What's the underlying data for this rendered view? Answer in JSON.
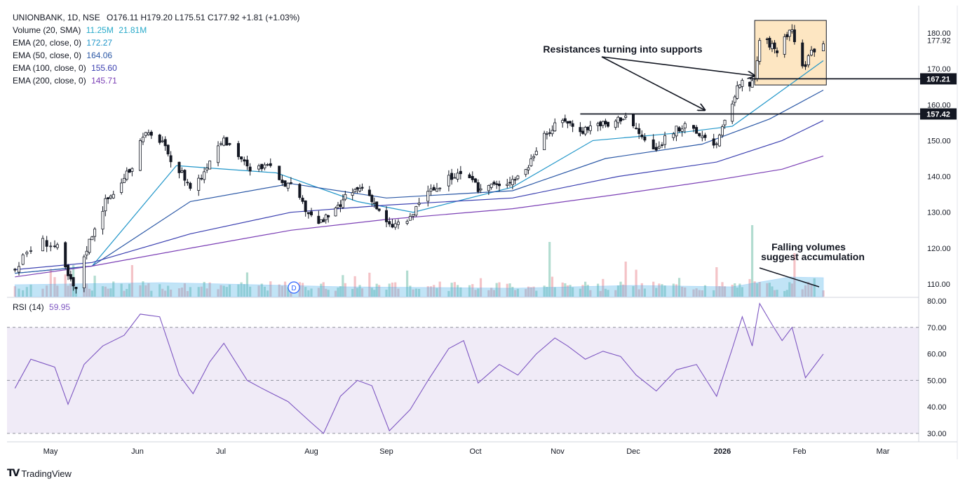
{
  "header": {
    "symbol_line": "UNIONBANK, 1D, NSE",
    "ohlc": "O176.11 H179.20 L175.51 C177.92 +1.81 (+1.03%)"
  },
  "legend": [
    {
      "label": "Volume (20, SMA)",
      "values": [
        "11.25M",
        "21.81M"
      ],
      "color": "#26a9c9"
    },
    {
      "label": "EMA (20, close, 0)",
      "values": [
        "172.27"
      ],
      "color": "#2196c9"
    },
    {
      "label": "EMA (50, close, 0)",
      "values": [
        "164.06"
      ],
      "color": "#2b58a6"
    },
    {
      "label": "EMA (100, close, 0)",
      "values": [
        "155.60"
      ],
      "color": "#3a3fb0"
    },
    {
      "label": "EMA (200, close, 0)",
      "values": [
        "145.71"
      ],
      "color": "#7b3fb5"
    }
  ],
  "rsi": {
    "label": "RSI (14)",
    "value": "59.95",
    "color": "#7e57c2"
  },
  "price_axis": {
    "ticks": [
      "180.00",
      "170.00",
      "160.00",
      "150.00",
      "140.00",
      "130.00",
      "120.00",
      "110.00"
    ],
    "last_price": "177.92",
    "level_labels": [
      "167.21",
      "157.42"
    ]
  },
  "rsi_axis": {
    "ticks": [
      "80.00",
      "70.00",
      "60.00",
      "50.00",
      "40.00",
      "30.00"
    ]
  },
  "time_axis": {
    "labels": [
      "May",
      "Jun",
      "Jul",
      "Aug",
      "Sep",
      "Oct",
      "Nov",
      "Dec",
      "2026",
      "Jan",
      "Feb",
      "Mar"
    ]
  },
  "annotations": {
    "resistance_text": "Resistances turning into supports",
    "volume_text_1": "Falling volumes",
    "volume_text_2": "suggest accumulation",
    "interval_badge": "D"
  },
  "brand": {
    "name": "TradingView",
    "icon": "tradingview-logo-icon"
  },
  "chart_data": {
    "type": "candlestick",
    "symbol": "UNIONBANK",
    "interval": "1D",
    "exchange": "NSE",
    "y_range": [
      108,
      184
    ],
    "rsi_range": [
      28,
      81
    ],
    "support_levels": [
      167.21,
      157.42
    ],
    "rsi_bands": [
      70,
      50,
      30
    ],
    "consolidation_box": {
      "start": "2026-01-14",
      "end": "2026-02-10",
      "low": 165.5,
      "high": 183.5
    },
    "close_path": [
      {
        "date": "2025-04-21",
        "close": 114
      },
      {
        "date": "2025-04-24",
        "close": 119
      },
      {
        "date": "2025-04-28",
        "close": 122
      },
      {
        "date": "2025-05-02",
        "close": 120
      },
      {
        "date": "2025-05-06",
        "close": 112
      },
      {
        "date": "2025-05-09",
        "close": 108
      },
      {
        "date": "2025-05-12",
        "close": 118
      },
      {
        "date": "2025-05-16",
        "close": 126
      },
      {
        "date": "2025-05-20",
        "close": 133
      },
      {
        "date": "2025-05-26",
        "close": 138
      },
      {
        "date": "2025-05-30",
        "close": 143
      },
      {
        "date": "2025-06-03",
        "close": 152
      },
      {
        "date": "2025-06-06",
        "close": 151
      },
      {
        "date": "2025-06-10",
        "close": 150
      },
      {
        "date": "2025-06-13",
        "close": 143
      },
      {
        "date": "2025-06-17",
        "close": 141
      },
      {
        "date": "2025-06-20",
        "close": 137
      },
      {
        "date": "2025-06-24",
        "close": 140
      },
      {
        "date": "2025-06-27",
        "close": 145
      },
      {
        "date": "2025-07-01",
        "close": 150
      },
      {
        "date": "2025-07-04",
        "close": 149
      },
      {
        "date": "2025-07-08",
        "close": 145
      },
      {
        "date": "2025-07-11",
        "close": 141
      },
      {
        "date": "2025-07-15",
        "close": 143
      },
      {
        "date": "2025-07-18",
        "close": 142
      },
      {
        "date": "2025-07-22",
        "close": 139
      },
      {
        "date": "2025-07-25",
        "close": 137
      },
      {
        "date": "2025-07-29",
        "close": 132
      },
      {
        "date": "2025-08-01",
        "close": 129
      },
      {
        "date": "2025-08-05",
        "close": 127
      },
      {
        "date": "2025-08-08",
        "close": 129
      },
      {
        "date": "2025-08-12",
        "close": 131
      },
      {
        "date": "2025-08-15",
        "close": 134
      },
      {
        "date": "2025-08-19",
        "close": 136
      },
      {
        "date": "2025-08-22",
        "close": 137
      },
      {
        "date": "2025-08-26",
        "close": 134
      },
      {
        "date": "2025-08-29",
        "close": 130
      },
      {
        "date": "2025-09-02",
        "close": 126
      },
      {
        "date": "2025-09-05",
        "close": 127
      },
      {
        "date": "2025-09-09",
        "close": 128
      },
      {
        "date": "2025-09-12",
        "close": 133
      },
      {
        "date": "2025-09-16",
        "close": 136
      },
      {
        "date": "2025-09-19",
        "close": 137
      },
      {
        "date": "2025-09-23",
        "close": 140
      },
      {
        "date": "2025-09-26",
        "close": 141
      },
      {
        "date": "2025-09-30",
        "close": 138
      },
      {
        "date": "2025-10-03",
        "close": 136
      },
      {
        "date": "2025-10-07",
        "close": 138
      },
      {
        "date": "2025-10-10",
        "close": 137
      },
      {
        "date": "2025-10-14",
        "close": 139
      },
      {
        "date": "2025-10-17",
        "close": 140
      },
      {
        "date": "2025-10-21",
        "close": 143
      },
      {
        "date": "2025-10-24",
        "close": 148
      },
      {
        "date": "2025-10-28",
        "close": 152
      },
      {
        "date": "2025-10-31",
        "close": 154
      },
      {
        "date": "2025-11-04",
        "close": 156
      },
      {
        "date": "2025-11-07",
        "close": 154
      },
      {
        "date": "2025-11-11",
        "close": 153
      },
      {
        "date": "2025-11-14",
        "close": 154
      },
      {
        "date": "2025-11-18",
        "close": 155
      },
      {
        "date": "2025-11-21",
        "close": 154
      },
      {
        "date": "2025-11-25",
        "close": 156
      },
      {
        "date": "2025-11-28",
        "close": 157
      },
      {
        "date": "2025-12-02",
        "close": 153
      },
      {
        "date": "2025-12-05",
        "close": 150
      },
      {
        "date": "2025-12-09",
        "close": 147
      },
      {
        "date": "2025-12-12",
        "close": 151
      },
      {
        "date": "2025-12-16",
        "close": 153
      },
      {
        "date": "2025-12-19",
        "close": 154
      },
      {
        "date": "2025-12-23",
        "close": 152
      },
      {
        "date": "2025-12-26",
        "close": 151
      },
      {
        "date": "2025-12-30",
        "close": 149
      },
      {
        "date": "2026-01-02",
        "close": 155
      },
      {
        "date": "2026-01-05",
        "close": 161
      },
      {
        "date": "2026-01-08",
        "close": 166
      },
      {
        "date": "2026-01-12",
        "close": 165
      },
      {
        "date": "2026-01-14",
        "close": 167
      },
      {
        "date": "2026-01-16",
        "close": 178
      },
      {
        "date": "2026-01-20",
        "close": 177
      },
      {
        "date": "2026-01-23",
        "close": 175
      },
      {
        "date": "2026-01-27",
        "close": 180
      },
      {
        "date": "2026-01-29",
        "close": 181
      },
      {
        "date": "2026-02-02",
        "close": 170
      },
      {
        "date": "2026-02-05",
        "close": 175
      },
      {
        "date": "2026-02-09",
        "close": 177.92
      }
    ],
    "ema_path": [
      {
        "name": "EMA (20, close, 0)",
        "points": [
          [
            "2025-04-21",
            113
          ],
          [
            "2025-05-15",
            115
          ],
          [
            "2025-06-15",
            143
          ],
          [
            "2025-07-20",
            141
          ],
          [
            "2025-08-20",
            133
          ],
          [
            "2025-09-10",
            130
          ],
          [
            "2025-10-15",
            137
          ],
          [
            "2025-11-15",
            150
          ],
          [
            "2025-12-15",
            152
          ],
          [
            "2026-01-05",
            154
          ],
          [
            "2026-02-09",
            172.27
          ]
        ]
      },
      {
        "name": "EMA (50, close, 0)",
        "points": [
          [
            "2025-04-21",
            113
          ],
          [
            "2025-05-15",
            115
          ],
          [
            "2025-06-20",
            133
          ],
          [
            "2025-07-25",
            138
          ],
          [
            "2025-09-01",
            134
          ],
          [
            "2025-10-15",
            136
          ],
          [
            "2025-11-20",
            145
          ],
          [
            "2025-12-25",
            149
          ],
          [
            "2026-01-20",
            156
          ],
          [
            "2026-02-09",
            164.06
          ]
        ]
      },
      {
        "name": "EMA (100, close, 0)",
        "points": [
          [
            "2025-04-21",
            114
          ],
          [
            "2025-05-15",
            116
          ],
          [
            "2025-06-20",
            124
          ],
          [
            "2025-07-25",
            130
          ],
          [
            "2025-09-01",
            132
          ],
          [
            "2025-10-15",
            134
          ],
          [
            "2025-11-25",
            140
          ],
          [
            "2025-12-30",
            144
          ],
          [
            "2026-01-25",
            150
          ],
          [
            "2026-02-09",
            155.6
          ]
        ]
      },
      {
        "name": "EMA (200, close, 0)",
        "points": [
          [
            "2025-04-21",
            112
          ],
          [
            "2025-05-15",
            115
          ],
          [
            "2025-06-20",
            120
          ],
          [
            "2025-07-25",
            125
          ],
          [
            "2025-09-01",
            128
          ],
          [
            "2025-10-15",
            131
          ],
          [
            "2025-11-25",
            135
          ],
          [
            "2025-12-30",
            139
          ],
          [
            "2026-01-25",
            142
          ],
          [
            "2026-02-09",
            145.71
          ]
        ]
      }
    ],
    "rsi_path": [
      {
        "date": "2025-04-21",
        "rsi": 47
      },
      {
        "date": "2025-04-25",
        "rsi": 58
      },
      {
        "date": "2025-05-01",
        "rsi": 55
      },
      {
        "date": "2025-05-06",
        "rsi": 41
      },
      {
        "date": "2025-05-12",
        "rsi": 56
      },
      {
        "date": "2025-05-19",
        "rsi": 63
      },
      {
        "date": "2025-05-27",
        "rsi": 67
      },
      {
        "date": "2025-06-02",
        "rsi": 75
      },
      {
        "date": "2025-06-09",
        "rsi": 74
      },
      {
        "date": "2025-06-16",
        "rsi": 52
      },
      {
        "date": "2025-06-21",
        "rsi": 45
      },
      {
        "date": "2025-06-27",
        "rsi": 57
      },
      {
        "date": "2025-07-02",
        "rsi": 64
      },
      {
        "date": "2025-07-10",
        "rsi": 50
      },
      {
        "date": "2025-07-15",
        "rsi": 47
      },
      {
        "date": "2025-07-24",
        "rsi": 42
      },
      {
        "date": "2025-08-01",
        "rsi": 34
      },
      {
        "date": "2025-08-06",
        "rsi": 30
      },
      {
        "date": "2025-08-13",
        "rsi": 44
      },
      {
        "date": "2025-08-20",
        "rsi": 50
      },
      {
        "date": "2025-08-26",
        "rsi": 48
      },
      {
        "date": "2025-09-02",
        "rsi": 31
      },
      {
        "date": "2025-09-09",
        "rsi": 39
      },
      {
        "date": "2025-09-15",
        "rsi": 50
      },
      {
        "date": "2025-09-22",
        "rsi": 62
      },
      {
        "date": "2025-09-27",
        "rsi": 65
      },
      {
        "date": "2025-10-02",
        "rsi": 49
      },
      {
        "date": "2025-10-10",
        "rsi": 56
      },
      {
        "date": "2025-10-17",
        "rsi": 52
      },
      {
        "date": "2025-10-24",
        "rsi": 60
      },
      {
        "date": "2025-10-31",
        "rsi": 66
      },
      {
        "date": "2025-11-05",
        "rsi": 63
      },
      {
        "date": "2025-11-12",
        "rsi": 58
      },
      {
        "date": "2025-11-19",
        "rsi": 61
      },
      {
        "date": "2025-11-26",
        "rsi": 59
      },
      {
        "date": "2025-12-02",
        "rsi": 52
      },
      {
        "date": "2025-12-09",
        "rsi": 46
      },
      {
        "date": "2025-12-16",
        "rsi": 54
      },
      {
        "date": "2025-12-23",
        "rsi": 56
      },
      {
        "date": "2025-12-30",
        "rsi": 44
      },
      {
        "date": "2026-01-05",
        "rsi": 62
      },
      {
        "date": "2026-01-09",
        "rsi": 74
      },
      {
        "date": "2026-01-13",
        "rsi": 63
      },
      {
        "date": "2026-01-16",
        "rsi": 79
      },
      {
        "date": "2026-01-21",
        "rsi": 71
      },
      {
        "date": "2026-01-25",
        "rsi": 65
      },
      {
        "date": "2026-01-29",
        "rsi": 70
      },
      {
        "date": "2026-02-03",
        "rsi": 51
      },
      {
        "date": "2026-02-09",
        "rsi": 59.95
      }
    ]
  }
}
